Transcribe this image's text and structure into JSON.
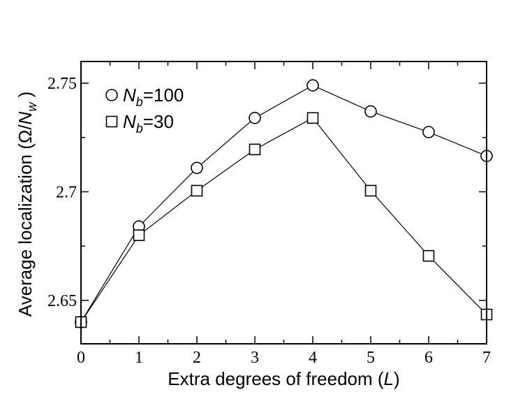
{
  "chart_data": {
    "type": "line",
    "title": "",
    "xlabel": "Extra degrees of freedom (L)",
    "xlabel_parts": {
      "text": "Extra degrees of freedom (",
      "var": "L",
      "close": ")"
    },
    "ylabel": "Average localization (Ω/N_w)",
    "ylabel_parts": {
      "text": "Average localization  (Ω/",
      "var": "N",
      "sub": "w",
      "close": " )"
    },
    "xlim": [
      0,
      7
    ],
    "ylim": [
      2.63,
      2.76
    ],
    "xticks": [
      0,
      1,
      2,
      3,
      4,
      5,
      6,
      7
    ],
    "xtick_labels": [
      "0",
      "1",
      "2",
      "3",
      "4",
      "5",
      "6",
      "7"
    ],
    "yticks": [
      2.65,
      2.7,
      2.75
    ],
    "ytick_labels": [
      "2.65",
      "2.7",
      "2.75"
    ],
    "grid": false,
    "legend_position": "top-left",
    "x": [
      0,
      1,
      2,
      3,
      4,
      5,
      6,
      7
    ],
    "series": [
      {
        "name": "N_b=100",
        "label_var": "N",
        "label_sub": "b",
        "label_rest": "=100",
        "marker": "circle",
        "values": [
          2.64,
          2.684,
          2.711,
          2.734,
          2.749,
          2.737,
          2.7275,
          2.7165
        ]
      },
      {
        "name": "N_b=30",
        "label_var": "N",
        "label_sub": "b",
        "label_rest": "=30",
        "marker": "square",
        "values": [
          2.64,
          2.68,
          2.7005,
          2.7195,
          2.734,
          2.7005,
          2.6705,
          2.6435
        ]
      }
    ],
    "colors": {
      "line": "#000000",
      "marker_fill": "#ffffff"
    }
  }
}
